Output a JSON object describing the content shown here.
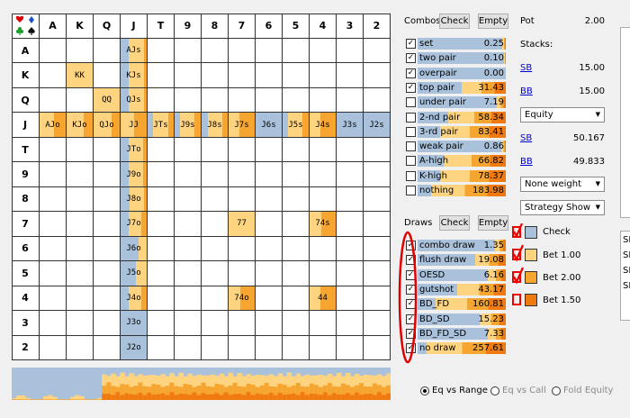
{
  "ranks": [
    "A",
    "K",
    "Q",
    "J",
    "T",
    "9",
    "8",
    "7",
    "6",
    "5",
    "4",
    "3",
    "2"
  ],
  "hands": [
    {
      "r": 0,
      "c": 3,
      "label": "AJs",
      "bar": [
        0.3,
        0.6,
        0.1
      ]
    },
    {
      "r": 1,
      "c": 1,
      "label": "KK",
      "bar": [
        0.0,
        1.0,
        0.0
      ]
    },
    {
      "r": 1,
      "c": 3,
      "label": "KJs",
      "bar": [
        0.3,
        0.6,
        0.1
      ]
    },
    {
      "r": 2,
      "c": 2,
      "label": "QQ",
      "bar": [
        0.0,
        1.0,
        0.0
      ]
    },
    {
      "r": 2,
      "c": 3,
      "label": "QJs",
      "bar": [
        0.3,
        0.6,
        0.1
      ]
    },
    {
      "r": 3,
      "c": 0,
      "label": "AJo",
      "bar": [
        0.0,
        0.55,
        0.45
      ]
    },
    {
      "r": 3,
      "c": 1,
      "label": "KJo",
      "bar": [
        0.0,
        0.65,
        0.35
      ]
    },
    {
      "r": 3,
      "c": 2,
      "label": "QJo",
      "bar": [
        0.0,
        0.7,
        0.3
      ]
    },
    {
      "r": 3,
      "c": 3,
      "label": "JJ",
      "bar": [
        0.0,
        0.5,
        0.5
      ]
    },
    {
      "r": 3,
      "c": 4,
      "label": "JTs",
      "bar": [
        0.2,
        0.6,
        0.2
      ]
    },
    {
      "r": 3,
      "c": 5,
      "label": "J9s",
      "bar": [
        0.2,
        0.55,
        0.25
      ]
    },
    {
      "r": 3,
      "c": 6,
      "label": "J8s",
      "bar": [
        0.25,
        0.55,
        0.2
      ]
    },
    {
      "r": 3,
      "c": 7,
      "label": "J7s",
      "bar": [
        0.0,
        0.4,
        0.6
      ]
    },
    {
      "r": 3,
      "c": 8,
      "label": "J6s",
      "bar": [
        1.0,
        0.0,
        0.0
      ]
    },
    {
      "r": 3,
      "c": 9,
      "label": "J5s",
      "bar": [
        0.2,
        0.55,
        0.25
      ]
    },
    {
      "r": 3,
      "c": 10,
      "label": "J4s",
      "bar": [
        0.0,
        0.4,
        0.6
      ]
    },
    {
      "r": 3,
      "c": 11,
      "label": "J3s",
      "bar": [
        1.0,
        0.0,
        0.0
      ]
    },
    {
      "r": 3,
      "c": 12,
      "label": "J2s",
      "bar": [
        1.0,
        0.0,
        0.0
      ]
    },
    {
      "r": 4,
      "c": 3,
      "label": "JTo",
      "bar": [
        0.3,
        0.55,
        0.15
      ]
    },
    {
      "r": 5,
      "c": 3,
      "label": "J9o",
      "bar": [
        0.3,
        0.55,
        0.15
      ]
    },
    {
      "r": 6,
      "c": 3,
      "label": "J8o",
      "bar": [
        0.35,
        0.55,
        0.1
      ]
    },
    {
      "r": 7,
      "c": 3,
      "label": "J7o",
      "bar": [
        0.3,
        0.5,
        0.2
      ]
    },
    {
      "r": 7,
      "c": 7,
      "label": "77",
      "bar": [
        0.0,
        1.0,
        0.0
      ]
    },
    {
      "r": 7,
      "c": 10,
      "label": "74s",
      "bar": [
        0.0,
        0.45,
        0.55
      ]
    },
    {
      "r": 8,
      "c": 3,
      "label": "J6o",
      "bar": [
        0.7,
        0.3,
        0.0
      ]
    },
    {
      "r": 9,
      "c": 3,
      "label": "J5o",
      "bar": [
        0.6,
        0.4,
        0.0
      ]
    },
    {
      "r": 10,
      "c": 3,
      "label": "J4o",
      "bar": [
        0.3,
        0.5,
        0.2
      ]
    },
    {
      "r": 10,
      "c": 7,
      "label": "74o",
      "bar": [
        0.0,
        0.45,
        0.55
      ]
    },
    {
      "r": 10,
      "c": 10,
      "label": "44",
      "bar": [
        0.0,
        0.4,
        0.6
      ]
    },
    {
      "r": 11,
      "c": 3,
      "label": "J3o",
      "bar": [
        1.0,
        0.0,
        0.0
      ]
    },
    {
      "r": 12,
      "c": 3,
      "label": "J2o",
      "bar": [
        1.0,
        0.0,
        0.0
      ]
    }
  ],
  "colors": {
    "check": "#a9c1da",
    "bet100": "#ffd480",
    "bet200": "#f6a531",
    "bet150": "#f07a10",
    "grid": "#333333"
  },
  "combos": {
    "title": "Combos",
    "check_btn": "Check",
    "empty_btn": "Empty",
    "rows": [
      {
        "name": "set",
        "value": "0.25",
        "checked": true,
        "fill": 0.04
      },
      {
        "name": "two pair",
        "value": "0.10",
        "checked": true,
        "fill": 0.02
      },
      {
        "name": "overpair",
        "value": "0.00",
        "checked": true,
        "fill": 0.0
      },
      {
        "name": "top pair",
        "value": "31.43",
        "checked": true,
        "fill": 0.5
      },
      {
        "name": "under pair",
        "value": "7.19",
        "checked": false,
        "fill": 0.1
      },
      {
        "name": "2-nd pair",
        "value": "58.34",
        "checked": false,
        "fill": 0.65
      },
      {
        "name": "3-rd pair",
        "value": "83.41",
        "checked": false,
        "fill": 0.75
      },
      {
        "name": "weak pair",
        "value": "0.86",
        "checked": false,
        "fill": 0.05
      },
      {
        "name": "A-high",
        "value": "66.82",
        "checked": false,
        "fill": 0.7
      },
      {
        "name": "K-high",
        "value": "78.37",
        "checked": false,
        "fill": 0.74
      },
      {
        "name": "nothing",
        "value": "183.98",
        "checked": false,
        "fill": 0.85
      }
    ]
  },
  "draws": {
    "title": "Draws",
    "check_btn": "Check",
    "empty_btn": "Empty",
    "rows": [
      {
        "name": "combo draw",
        "value": "1.35",
        "checked": true,
        "fill": 0.12
      },
      {
        "name": "flush draw",
        "value": "19.08",
        "checked": true,
        "fill": 0.35
      },
      {
        "name": "OESD",
        "value": "6.16",
        "checked": true,
        "fill": 0.2
      },
      {
        "name": "gutshot",
        "value": "43.17",
        "checked": true,
        "fill": 0.55
      },
      {
        "name": "BD_FD",
        "value": "160.81",
        "checked": true,
        "fill": 0.8
      },
      {
        "name": "BD_SD",
        "value": "15.23",
        "checked": true,
        "fill": 0.3
      },
      {
        "name": "BD_FD_SD",
        "value": "7.33",
        "checked": true,
        "fill": 0.2
      },
      {
        "name": "no draw",
        "value": "257.61",
        "checked": true,
        "fill": 0.9
      }
    ]
  },
  "pot": {
    "label": "Pot",
    "value": "2.00"
  },
  "stacks": {
    "label": "Stacks:",
    "sb": {
      "name": "SB",
      "value": "15.00"
    },
    "bb": {
      "name": "BB",
      "value": "15.00"
    }
  },
  "equity": {
    "dropdown": "Equity",
    "sb": {
      "name": "SB",
      "value": "50.167"
    },
    "bb": {
      "name": "BB",
      "value": "49.833"
    }
  },
  "weight_dropdown": "None weight",
  "strategy_dropdown": "Strategy Show",
  "strategy": [
    {
      "label": "Check",
      "color": "#a9c1da"
    },
    {
      "label": "Bet 1.00",
      "color": "#ffd480"
    },
    {
      "label": "Bet 2.00",
      "color": "#f6a531"
    },
    {
      "label": "Bet 1.50",
      "color": "#f07a10"
    }
  ],
  "radios": [
    {
      "label": "Eq vs Range",
      "selected": true
    },
    {
      "label": "Eq vs Call",
      "selected": false
    },
    {
      "label": "Fold Equity",
      "selected": false
    }
  ],
  "side_list": [
    "SE",
    "SE",
    "SE",
    "SE"
  ]
}
